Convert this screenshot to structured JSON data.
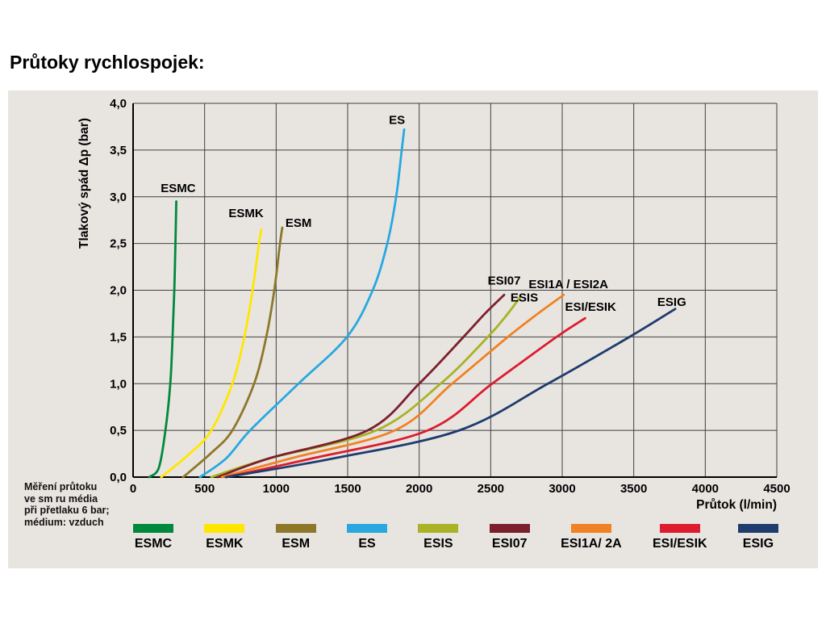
{
  "page": {
    "title": "Průtoky rychlospojek:"
  },
  "chart_data": {
    "type": "line",
    "title": "Průtoky rychlospojek:",
    "xlabel": "Průtok (l/min)",
    "ylabel": "Tlakový spád Δp (bar)",
    "xlim": [
      0,
      4500
    ],
    "ylim": [
      0,
      4
    ],
    "grid": true,
    "grid_color": "#3f3f3f",
    "panel_bg": "#e8e5e1",
    "legend_position": "bottom",
    "x_ticks": [
      0,
      500,
      1000,
      1500,
      2000,
      2500,
      3000,
      3500,
      4000,
      4500
    ],
    "x_tick_labels": [
      "0",
      "500",
      "1000",
      "1500",
      "2000",
      "2500",
      "3000",
      "3500",
      "4000",
      "4500"
    ],
    "y_ticks": [
      0,
      0.5,
      1,
      1.5,
      2,
      2.5,
      3,
      3.5,
      4
    ],
    "y_tick_labels": [
      "0,0",
      "0,5",
      "1,0",
      "1,5",
      "2,0",
      "2,5",
      "3,0",
      "3,5",
      "4,0"
    ],
    "note_lines": [
      "Měření průtoku",
      "ve sm ru média",
      "při přetlaku 6 bar;",
      "médium: vzduch"
    ],
    "series": [
      {
        "name": "ESMC",
        "color": "#00893d",
        "points": [
          [
            113,
            0
          ],
          [
            180,
            0.1
          ],
          [
            226,
            0.5
          ],
          [
            260,
            1.0
          ],
          [
            276,
            1.5
          ],
          [
            288,
            2.0
          ],
          [
            296,
            2.5
          ],
          [
            302,
            2.95
          ]
        ],
        "label": {
          "text": "ESMC",
          "x": 315,
          "y": 3.05,
          "anchor": "middle"
        }
      },
      {
        "name": "ESMK",
        "color": "#ffe600",
        "points": [
          [
            197,
            0
          ],
          [
            395,
            0.25
          ],
          [
            547,
            0.5
          ],
          [
            694,
            1.0
          ],
          [
            778,
            1.5
          ],
          [
            835,
            2.0
          ],
          [
            880,
            2.5
          ],
          [
            897,
            2.65
          ]
        ],
        "label": {
          "text": "ESMK",
          "x": 790,
          "y": 2.78,
          "anchor": "middle"
        }
      },
      {
        "name": "ESM",
        "color": "#8d7829",
        "points": [
          [
            350,
            0
          ],
          [
            540,
            0.25
          ],
          [
            694,
            0.5
          ],
          [
            846,
            1.0
          ],
          [
            931,
            1.5
          ],
          [
            987,
            2.0
          ],
          [
            1027,
            2.5
          ],
          [
            1043,
            2.67
          ]
        ],
        "label": {
          "text": "ESM",
          "x": 1065,
          "y": 2.68,
          "anchor": "start"
        }
      },
      {
        "name": "ES",
        "color": "#29a8e0",
        "points": [
          [
            468,
            0
          ],
          [
            650,
            0.2
          ],
          [
            818,
            0.5
          ],
          [
            1156,
            1.0
          ],
          [
            1495,
            1.5
          ],
          [
            1675,
            2.0
          ],
          [
            1777,
            2.5
          ],
          [
            1839,
            3.0
          ],
          [
            1878,
            3.5
          ],
          [
            1895,
            3.72
          ]
        ],
        "label": {
          "text": "ES",
          "x": 1845,
          "y": 3.78,
          "anchor": "middle"
        }
      },
      {
        "name": "ESIS",
        "color": "#a9b325",
        "points": [
          [
            547,
            0
          ],
          [
            950,
            0.2
          ],
          [
            1700,
            0.5
          ],
          [
            2150,
            1.0
          ],
          [
            2480,
            1.5
          ],
          [
            2620,
            1.75
          ],
          [
            2707,
            1.93
          ]
        ],
        "label": {
          "text": "ESIS",
          "x": 2735,
          "y": 1.88,
          "anchor": "middle"
        }
      },
      {
        "name": "ESI07",
        "color": "#7c1f2c",
        "points": [
          [
            592,
            0
          ],
          [
            950,
            0.2
          ],
          [
            1640,
            0.5
          ],
          [
            2000,
            1.0
          ],
          [
            2310,
            1.5
          ],
          [
            2460,
            1.75
          ],
          [
            2594,
            1.95
          ]
        ],
        "label": {
          "text": "ESI07",
          "x": 2594,
          "y": 2.06,
          "anchor": "middle"
        }
      },
      {
        "name": "ESI1A/ESI2A",
        "color": "#f08223",
        "points": [
          [
            620,
            0
          ],
          [
            1100,
            0.2
          ],
          [
            1830,
            0.5
          ],
          [
            2230,
            1.0
          ],
          [
            2620,
            1.5
          ],
          [
            2830,
            1.75
          ],
          [
            3010,
            1.95
          ]
        ],
        "label": {
          "text": "ESI1A / ESI2A",
          "x": 2765,
          "y": 2.02,
          "anchor": "start"
        }
      },
      {
        "name": "ESI/ESIK",
        "color": "#dd1c2e",
        "points": [
          [
            650,
            0
          ],
          [
            1250,
            0.2
          ],
          [
            2060,
            0.5
          ],
          [
            2510,
            1.0
          ],
          [
            2960,
            1.5
          ],
          [
            3160,
            1.7
          ]
        ],
        "label": {
          "text": "ESI/ESIK",
          "x": 3020,
          "y": 1.78,
          "anchor": "start"
        }
      },
      {
        "name": "ESIG",
        "color": "#1e3c6e",
        "points": [
          [
            650,
            0
          ],
          [
            1400,
            0.2
          ],
          [
            2280,
            0.5
          ],
          [
            2900,
            1.0
          ],
          [
            3470,
            1.5
          ],
          [
            3790,
            1.8
          ]
        ],
        "label": {
          "text": "ESIG",
          "x": 3665,
          "y": 1.83,
          "anchor": "start"
        }
      }
    ],
    "legend": [
      {
        "label": "ESMC",
        "color": "#00893d"
      },
      {
        "label": "ESMK",
        "color": "#ffe600"
      },
      {
        "label": "ESM",
        "color": "#8d7829"
      },
      {
        "label": "ES",
        "color": "#29a8e0"
      },
      {
        "label": "ESIS",
        "color": "#a9b325"
      },
      {
        "label": "ESI07",
        "color": "#7c1f2c"
      },
      {
        "label": "ESI1A/ 2A",
        "color": "#f08223"
      },
      {
        "label": "ESI/ESIK",
        "color": "#dd1c2e"
      },
      {
        "label": "ESIG",
        "color": "#1e3c6e"
      }
    ]
  }
}
